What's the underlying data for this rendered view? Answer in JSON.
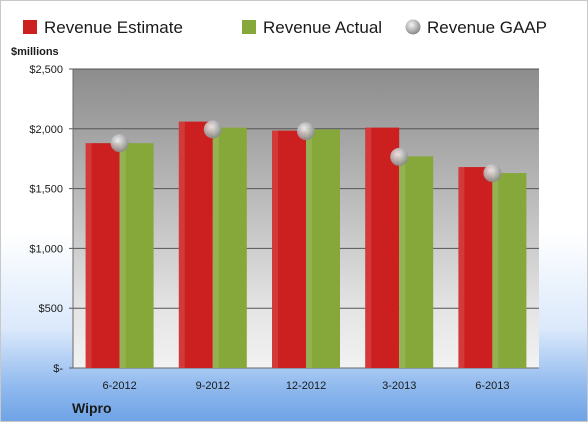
{
  "chart_data": {
    "type": "bar",
    "categories": [
      "6-2012",
      "9-2012",
      "12-2012",
      "3-2013",
      "6-2013"
    ],
    "series": [
      {
        "name": "Revenue Estimate",
        "kind": "bar",
        "color": "#cc1f1f",
        "values": [
          1880,
          2060,
          1985,
          2010,
          1680
        ]
      },
      {
        "name": "Revenue Actual",
        "kind": "bar",
        "color": "#86a83a",
        "values": [
          1880,
          2010,
          1995,
          1770,
          1630
        ]
      },
      {
        "name": "Revenue GAAP",
        "kind": "marker",
        "color": "#b8b8b8",
        "values": [
          1880,
          1995,
          1980,
          1765,
          1630
        ]
      }
    ],
    "ylim": [
      0,
      2500
    ],
    "yticks": [
      0,
      500,
      1000,
      1500,
      2000,
      2500
    ],
    "ytick_labels": [
      "$-",
      "$500",
      "$1,000",
      "$1,500",
      "$2,000",
      "$2,500"
    ],
    "unit_label": "$millions",
    "company": "Wipro",
    "grid": true,
    "legend_position": "top"
  }
}
